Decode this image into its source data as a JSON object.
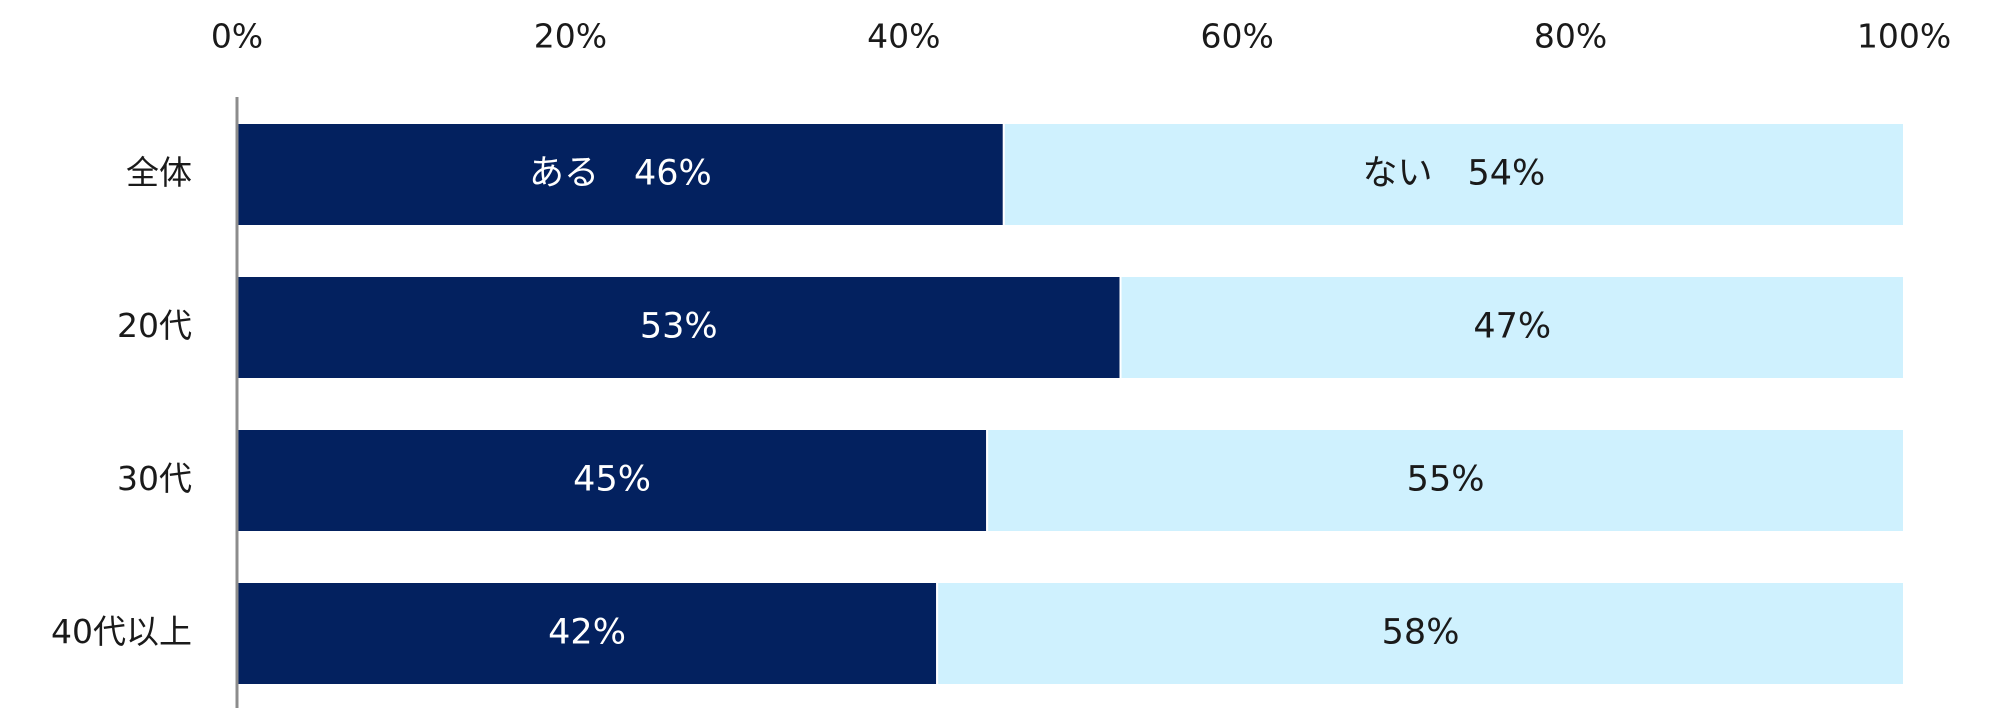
{
  "chart_data": {
    "type": "bar",
    "orientation": "horizontal",
    "stacked": true,
    "x_tick_labels": [
      "0%",
      "20%",
      "40%",
      "60%",
      "80%",
      "100%"
    ],
    "xlim": [
      0,
      100
    ],
    "categories": [
      "全体",
      "20代",
      "30代",
      "40代以上"
    ],
    "series": [
      {
        "name": "ある",
        "color": "#03215f",
        "values": [
          46,
          53,
          45,
          42
        ],
        "labels": [
          "ある　46%",
          "53%",
          "45%",
          "42%"
        ]
      },
      {
        "name": "ない",
        "color": "#cff1fe",
        "values": [
          54,
          47,
          55,
          58
        ],
        "labels": [
          "ない　54%",
          "47%",
          "55%",
          "58%"
        ]
      }
    ],
    "label_colors": [
      "#ffffff",
      "#1a1a1a"
    ],
    "axis_line_color": "#8c8c8c"
  }
}
